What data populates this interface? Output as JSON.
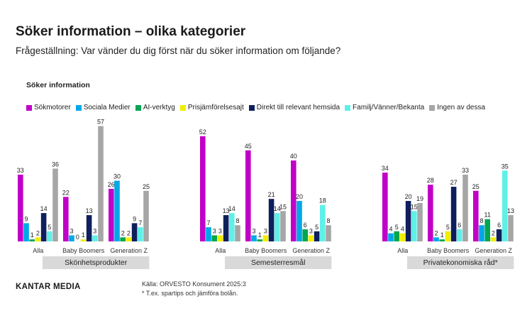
{
  "header": {
    "title": "Söker information – olika kategorier",
    "subtitle": "Frågeställning: Var vänder du dig först när du söker information om följande?"
  },
  "section_label": "Söker information",
  "legend": [
    {
      "name": "Sökmotorer",
      "color": "#c100c8"
    },
    {
      "name": "Sociala Medier",
      "color": "#00a8e8"
    },
    {
      "name": "AI-verktyg",
      "color": "#00a650"
    },
    {
      "name": "Prisjämförelsesajt",
      "color": "#f2ee00"
    },
    {
      "name": "Direkt till relevant hemsida",
      "color": "#0d1f5c"
    },
    {
      "name": "Familj/Vänner/Bekanta",
      "color": "#5ff0e8"
    },
    {
      "name": "Ingen av dessa",
      "color": "#a6a6a6"
    }
  ],
  "chart_data": {
    "type": "bar",
    "series_names": [
      "Sökmotorer",
      "Sociala Medier",
      "AI-verktyg",
      "Prisjämförelsesajt",
      "Direkt till relevant hemsida",
      "Familj/Vänner/Bekanta",
      "Ingen av dessa"
    ],
    "panels": [
      {
        "label": "Skönhetsprodukter",
        "groups": [
          {
            "name": "Alla",
            "values": [
              33,
              9,
              1,
              2,
              14,
              5,
              36
            ]
          },
          {
            "name": "Baby Boomers",
            "values": [
              22,
              3,
              0,
              1,
              13,
              3,
              57
            ]
          },
          {
            "name": "Generation Z",
            "values": [
              26,
              30,
              2,
              2,
              9,
              7,
              25
            ]
          }
        ]
      },
      {
        "label": "Semesterresmål",
        "groups": [
          {
            "name": "Alla",
            "values": [
              52,
              7,
              3,
              3,
              13,
              14,
              8
            ]
          },
          {
            "name": "Baby Boomers",
            "values": [
              45,
              3,
              1,
              3,
              21,
              14,
              15
            ]
          },
          {
            "name": "Generation Z",
            "values": [
              40,
              20,
              6,
              3,
              5,
              18,
              8
            ]
          }
        ]
      },
      {
        "label": "Privatekonomiska råd*",
        "groups": [
          {
            "name": "Alla",
            "values": [
              34,
              4,
              5,
              4,
              20,
              15,
              19
            ]
          },
          {
            "name": "Baby Boomers",
            "values": [
              28,
              2,
              1,
              5,
              27,
              6,
              33
            ]
          },
          {
            "name": "Generation Z",
            "values": [
              25,
              8,
              11,
              2,
              6,
              35,
              13
            ]
          }
        ]
      }
    ]
  },
  "footer": {
    "logo": "KANTAR MEDIA",
    "source": "Källa: ORVESTO Konsument 2025:3",
    "note": "* T.ex. spartips och jämföra bolån."
  }
}
